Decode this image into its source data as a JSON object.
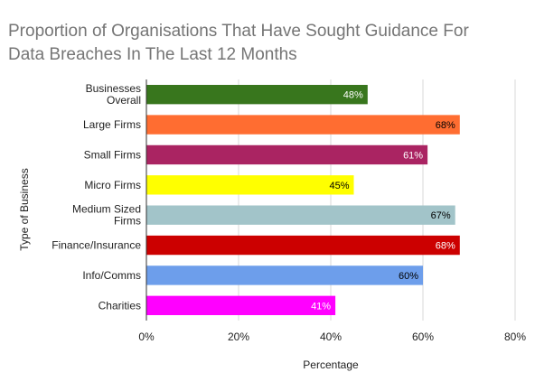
{
  "chart_data": {
    "type": "bar",
    "orientation": "horizontal",
    "title_lines": [
      "Proportion of Organisations That Have Sought Guidance For",
      "Data Breaches In The Last 12 Months"
    ],
    "xlabel": "Percentage",
    "ylabel": "Type of Business",
    "xlim": [
      0,
      80
    ],
    "x_ticks": [
      "0%",
      "20%",
      "40%",
      "60%",
      "80%"
    ],
    "grid": true,
    "categories": [
      [
        "Businesses",
        "Overall"
      ],
      [
        "Large Firms"
      ],
      [
        "Small Firms"
      ],
      [
        "Micro Firms"
      ],
      [
        "Medium Sized",
        "Firms"
      ],
      [
        "Finance/Insurance"
      ],
      [
        "Info/Comms"
      ],
      [
        "Charities"
      ]
    ],
    "values": [
      48,
      68,
      61,
      45,
      67,
      68,
      60,
      41
    ],
    "data_labels": [
      "48%",
      "68%",
      "61%",
      "45%",
      "67%",
      "68%",
      "60%",
      "41%"
    ],
    "colors": [
      "#38761d",
      "#ff6d31",
      "#aa2462",
      "#ffff00",
      "#a2c4c9",
      "#cc0000",
      "#6d9eeb",
      "#ff00ff"
    ],
    "label_colors": [
      "#ffffff",
      "#000000",
      "#ffffff",
      "#000000",
      "#000000",
      "#ffffff",
      "#000000",
      "#ffffff"
    ]
  }
}
